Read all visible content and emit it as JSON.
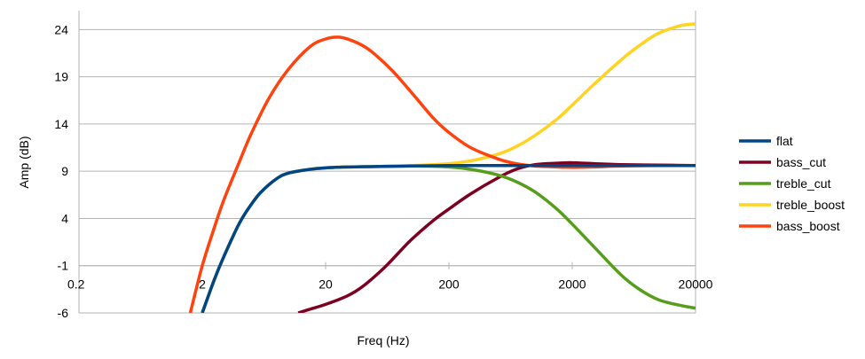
{
  "chart_data": {
    "type": "line",
    "title": "",
    "xlabel": "Freq (Hz)",
    "ylabel": "Amp (dB)",
    "x_scale": "log",
    "xlim": [
      0.2,
      20000
    ],
    "ylim": [
      -6,
      26
    ],
    "x_ticks": [
      "0.2",
      "2",
      "20",
      "200",
      "2000",
      "20000"
    ],
    "x_tick_values": [
      0.2,
      2,
      20,
      200,
      2000,
      20000
    ],
    "y_ticks": [
      "24",
      "19",
      "14",
      "9",
      "4",
      "-1",
      "-6"
    ],
    "y_tick_values": [
      24,
      19,
      14,
      9,
      4,
      -1,
      -6
    ],
    "x_axis_crosses_y_at": -1,
    "grid": "horizontal",
    "legend_position": "right",
    "series": [
      {
        "name": "flat",
        "color": "#004586",
        "x": [
          2.0,
          2.5,
          3,
          4,
          5,
          6,
          8,
          10,
          15,
          20,
          30,
          50,
          100,
          200,
          500,
          1000,
          2000,
          5000,
          10000,
          20000
        ],
        "y": [
          -6,
          -2.5,
          0,
          3.5,
          5.5,
          6.8,
          8.2,
          8.8,
          9.2,
          9.35,
          9.45,
          9.5,
          9.55,
          9.6,
          9.6,
          9.6,
          9.6,
          9.6,
          9.6,
          9.6
        ]
      },
      {
        "name": "bass_cut",
        "color": "#7e0021",
        "x": [
          12,
          15,
          20,
          30,
          40,
          60,
          80,
          100,
          150,
          200,
          300,
          500,
          700,
          1000,
          1500,
          2000,
          3000,
          5000,
          10000,
          20000
        ],
        "y": [
          -6,
          -5.6,
          -5.1,
          -4.2,
          -3.2,
          -1.2,
          0.5,
          1.8,
          3.8,
          5.0,
          6.6,
          8.3,
          9.2,
          9.7,
          9.85,
          9.9,
          9.8,
          9.7,
          9.65,
          9.6
        ]
      },
      {
        "name": "treble_cut",
        "color": "#579d1c",
        "x": [
          2.0,
          2.5,
          3,
          4,
          5,
          6,
          8,
          10,
          15,
          20,
          30,
          50,
          100,
          200,
          300,
          500,
          700,
          1000,
          1500,
          2000,
          3000,
          5000,
          7000,
          10000,
          15000,
          20000
        ],
        "y": [
          -6,
          -2.5,
          0,
          3.5,
          5.5,
          6.8,
          8.2,
          8.8,
          9.2,
          9.35,
          9.45,
          9.5,
          9.55,
          9.45,
          9.2,
          8.6,
          7.9,
          6.8,
          5.0,
          3.4,
          1.0,
          -2.0,
          -3.5,
          -4.6,
          -5.2,
          -5.5
        ]
      },
      {
        "name": "treble_boost",
        "color": "#ffd320",
        "x": [
          2.0,
          2.5,
          3,
          4,
          5,
          6,
          8,
          10,
          15,
          20,
          30,
          50,
          100,
          150,
          200,
          300,
          500,
          700,
          1000,
          1500,
          2000,
          3000,
          5000,
          7000,
          10000,
          15000,
          20000
        ],
        "y": [
          -6,
          -2.5,
          0,
          3.5,
          5.5,
          6.8,
          8.2,
          8.8,
          9.2,
          9.35,
          9.45,
          9.5,
          9.6,
          9.7,
          9.8,
          10.1,
          10.8,
          11.6,
          12.8,
          14.5,
          16.0,
          18.2,
          20.8,
          22.3,
          23.6,
          24.4,
          24.6
        ]
      },
      {
        "name": "bass_boost",
        "color": "#ff420e",
        "x": [
          1.6,
          2,
          2.5,
          3,
          4,
          5,
          7,
          10,
          15,
          20,
          25,
          30,
          40,
          50,
          70,
          100,
          150,
          200,
          300,
          500,
          700,
          1000,
          1500,
          2000,
          3000,
          5000,
          10000,
          20000
        ],
        "y": [
          -6,
          -1,
          3.0,
          6.0,
          10.0,
          13.0,
          16.8,
          19.8,
          22.2,
          23.0,
          23.2,
          23.0,
          22.3,
          21.4,
          19.6,
          17.3,
          14.6,
          13.1,
          11.5,
          10.3,
          9.8,
          9.55,
          9.45,
          9.4,
          9.45,
          9.55,
          9.6,
          9.6
        ]
      }
    ]
  }
}
